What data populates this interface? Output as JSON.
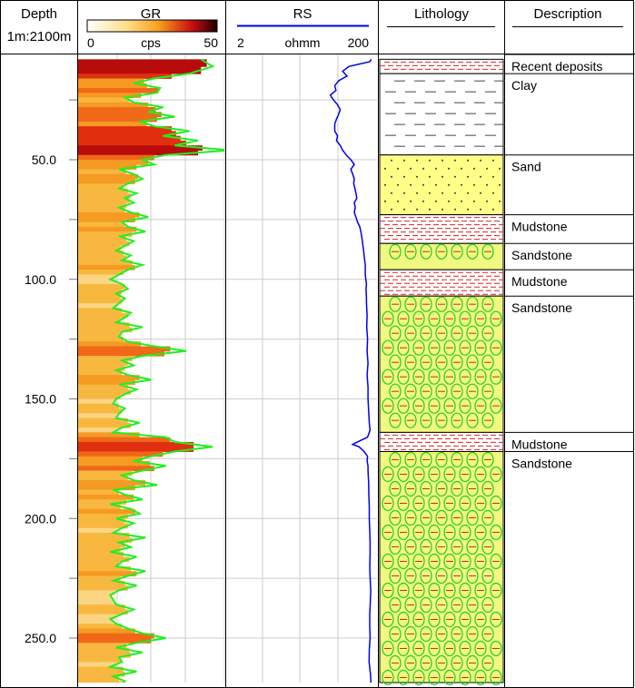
{
  "tracks": {
    "depth": {
      "title": "Depth",
      "scale": "1m:2100m"
    },
    "gr": {
      "title": "GR",
      "min": "0",
      "unit": "cps",
      "max": "50"
    },
    "rs": {
      "title": "RS",
      "min": "2",
      "unit": "ohmm",
      "max": "200"
    },
    "lithology": {
      "title": "Lithology"
    },
    "description": {
      "title": "Description"
    }
  },
  "colors": {
    "gr_curve": "#22ee22",
    "rs_curve": "#0000ee",
    "sand_fill": "#ffff88",
    "sandstone_fill": "#f0f880",
    "mudstone_dash": "#dd2222",
    "clay_dash": "#444444",
    "grid": "#cccccc"
  },
  "chart_data": {
    "type": "well-log",
    "depth_range": [
      8,
      270
    ],
    "depth_ticks": [
      "50.0",
      "100.0",
      "150.0",
      "200.0",
      "250.0"
    ],
    "gr_range": [
      0,
      50
    ],
    "rs_range": [
      2,
      200
    ],
    "gr_series": {
      "depth": [
        8,
        11,
        14,
        16,
        18,
        20,
        22,
        24,
        26,
        28,
        30,
        32,
        34,
        36,
        38,
        40,
        42,
        44,
        46,
        48,
        50,
        52,
        54,
        56,
        58,
        60,
        62,
        64,
        66,
        68,
        70,
        72,
        74,
        76,
        78,
        80,
        82,
        84,
        86,
        88,
        90,
        92,
        94,
        96,
        98,
        100,
        102,
        104,
        106,
        108,
        110,
        112,
        114,
        116,
        118,
        120,
        122,
        124,
        126,
        128,
        130,
        132,
        134,
        136,
        138,
        140,
        142,
        144,
        146,
        148,
        150,
        152,
        154,
        156,
        158,
        160,
        162,
        164,
        166,
        168,
        170,
        172,
        174,
        176,
        178,
        180,
        182,
        184,
        186,
        188,
        190,
        192,
        194,
        196,
        198,
        200,
        202,
        204,
        206,
        208,
        210,
        212,
        214,
        216,
        218,
        220,
        222,
        224,
        226,
        228,
        230,
        232,
        234,
        236,
        238,
        240,
        242,
        244,
        246,
        248,
        250,
        252,
        254,
        256,
        258,
        260,
        262,
        264,
        266,
        268,
        270
      ],
      "values": [
        42,
        46,
        38,
        26,
        19,
        28,
        27,
        16,
        19,
        29,
        24,
        33,
        21,
        26,
        38,
        29,
        41,
        33,
        52,
        30,
        22,
        26,
        14,
        19,
        22,
        17,
        14,
        20,
        16,
        19,
        14,
        18,
        24,
        15,
        17,
        23,
        14,
        19,
        16,
        13,
        18,
        15,
        22,
        17,
        14,
        11,
        15,
        17,
        13,
        16,
        14,
        12,
        18,
        16,
        13,
        22,
        15,
        14,
        17,
        26,
        37,
        22,
        15,
        19,
        13,
        17,
        25,
        14,
        20,
        16,
        13,
        12,
        16,
        14,
        13,
        21,
        15,
        12,
        30,
        33,
        46,
        33,
        25,
        19,
        30,
        22,
        15,
        19,
        27,
        12,
        16,
        22,
        11,
        18,
        21,
        13,
        19,
        15,
        12,
        23,
        14,
        18,
        11,
        20,
        15,
        13,
        23,
        17,
        12,
        20,
        14,
        11,
        12,
        13,
        19,
        15,
        11,
        13,
        17,
        22,
        30,
        20,
        13,
        22,
        14,
        15,
        11,
        20,
        12,
        16,
        14
      ]
    },
    "rs_series": {
      "depth": [
        8,
        9,
        11,
        13,
        15,
        17,
        19,
        21,
        23,
        25,
        27,
        29,
        31,
        33,
        35,
        38,
        40,
        42,
        44,
        46,
        48,
        50,
        52,
        54,
        56,
        58,
        60,
        62,
        64,
        66,
        68,
        70,
        72,
        74,
        76,
        78,
        80,
        82,
        84,
        86,
        88,
        90,
        92,
        94,
        96,
        98,
        100,
        102,
        104,
        106,
        108,
        110,
        115,
        120,
        125,
        130,
        135,
        140,
        145,
        150,
        155,
        160,
        163,
        166,
        168,
        169,
        170,
        172,
        174,
        176,
        178,
        180,
        185,
        190,
        195,
        200,
        205,
        210,
        215,
        220,
        225,
        230,
        235,
        240,
        245,
        250,
        255,
        260,
        265,
        268,
        270
      ],
      "values": [
        168,
        160,
        85,
        70,
        80,
        62,
        55,
        57,
        48,
        53,
        60,
        65,
        62,
        58,
        55,
        55,
        60,
        58,
        65,
        70,
        78,
        90,
        100,
        90,
        95,
        100,
        98,
        102,
        105,
        108,
        100,
        103,
        100,
        105,
        110,
        118,
        122,
        125,
        128,
        130,
        133,
        135,
        137,
        140,
        140,
        140,
        142,
        145,
        143,
        144,
        145,
        145,
        148,
        146,
        150,
        148,
        152,
        148,
        152,
        152,
        155,
        158,
        162,
        150,
        110,
        95,
        115,
        135,
        150,
        148,
        152,
        152,
        155,
        156,
        158,
        158,
        160,
        162,
        162,
        160,
        162,
        165,
        163,
        160,
        160,
        162,
        158,
        157,
        164,
        166,
        162
      ]
    },
    "lithology": [
      {
        "name": "Recent deposits",
        "top": 8,
        "base": 14,
        "pattern": "mudstone"
      },
      {
        "name": "Clay",
        "top": 14,
        "base": 48,
        "pattern": "clay"
      },
      {
        "name": "Sand",
        "top": 48,
        "base": 73,
        "pattern": "sand"
      },
      {
        "name": "Mudstone",
        "top": 73,
        "base": 85,
        "pattern": "mudstone"
      },
      {
        "name": "Sandstone",
        "top": 85,
        "base": 96,
        "pattern": "sandstone"
      },
      {
        "name": "Mudstone",
        "top": 96,
        "base": 107,
        "pattern": "mudstone"
      },
      {
        "name": "Sandstone",
        "top": 107,
        "base": 164,
        "pattern": "sandstone"
      },
      {
        "name": "Mudstone",
        "top": 164,
        "base": 172,
        "pattern": "mudstone"
      },
      {
        "name": "Sandstone",
        "top": 172,
        "base": 270,
        "pattern": "sandstone"
      }
    ]
  }
}
